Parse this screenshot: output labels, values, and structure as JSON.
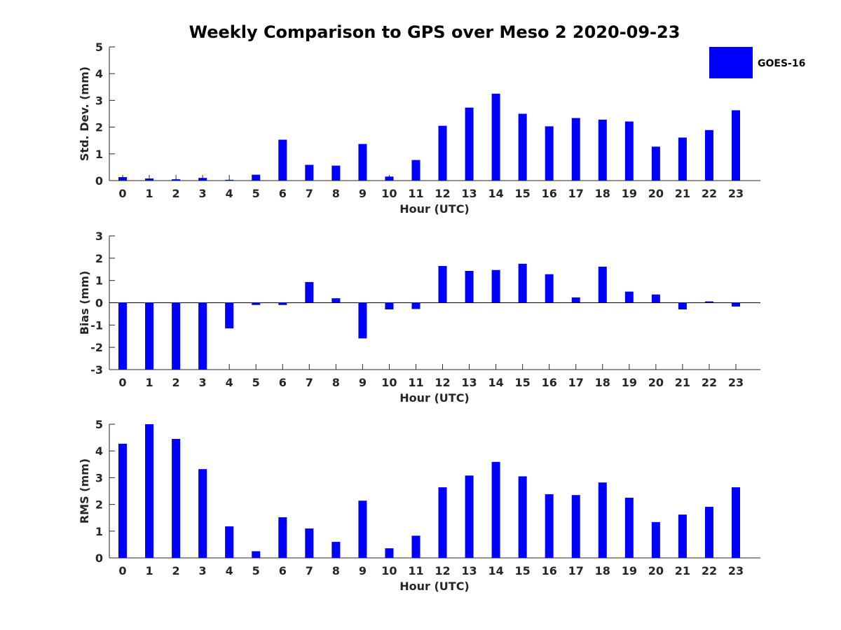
{
  "title": "Weekly Comparison to GPS over Meso 2 2020-09-23",
  "legend": {
    "label": "GOES-16",
    "color": "#0000ff",
    "placement": "top-right"
  },
  "chart_data": [
    {
      "type": "bar",
      "name": "std-dev",
      "xlabel": "Hour (UTC)",
      "ylabel": "Std. Dev. (mm)",
      "ylim": [
        0,
        5
      ],
      "yticks": [
        "0",
        "1",
        "2",
        "3",
        "4",
        "5"
      ],
      "categories": [
        "0",
        "1",
        "2",
        "3",
        "4",
        "5",
        "6",
        "7",
        "8",
        "9",
        "10",
        "11",
        "12",
        "13",
        "14",
        "15",
        "16",
        "17",
        "18",
        "19",
        "20",
        "21",
        "22",
        "23"
      ],
      "series": [
        {
          "name": "GOES-16",
          "color": "#0000ff",
          "values": [
            0.13,
            0.08,
            0.05,
            0.1,
            0.03,
            0.22,
            1.53,
            0.59,
            0.56,
            1.37,
            0.15,
            0.77,
            2.05,
            2.73,
            3.25,
            2.5,
            2.03,
            2.34,
            2.28,
            2.21,
            1.27,
            1.61,
            1.89,
            2.63
          ]
        }
      ]
    },
    {
      "type": "bar",
      "name": "bias",
      "xlabel": "Hour (UTC)",
      "ylabel": "Bias (mm)",
      "ylim": [
        -3,
        3
      ],
      "yticks": [
        "-3",
        "-2",
        "-1",
        "0",
        "1",
        "2",
        "3"
      ],
      "categories": [
        "0",
        "1",
        "2",
        "3",
        "4",
        "5",
        "6",
        "7",
        "8",
        "9",
        "10",
        "11",
        "12",
        "13",
        "14",
        "15",
        "16",
        "17",
        "18",
        "19",
        "20",
        "21",
        "22",
        "23"
      ],
      "series": [
        {
          "name": "GOES-16",
          "color": "#0000ff",
          "values": [
            -3.0,
            -3.0,
            -3.0,
            -3.0,
            -1.15,
            -0.1,
            -0.1,
            0.93,
            0.2,
            -1.6,
            -0.3,
            -0.28,
            1.65,
            1.43,
            1.47,
            1.75,
            1.28,
            0.24,
            1.62,
            0.5,
            0.37,
            -0.3,
            0.06,
            -0.17
          ]
        }
      ]
    },
    {
      "type": "bar",
      "name": "rms",
      "xlabel": "Hour (UTC)",
      "ylabel": "RMS (mm)",
      "ylim": [
        0,
        5
      ],
      "yticks": [
        "0",
        "1",
        "2",
        "3",
        "4",
        "5"
      ],
      "categories": [
        "0",
        "1",
        "2",
        "3",
        "4",
        "5",
        "6",
        "7",
        "8",
        "9",
        "10",
        "11",
        "12",
        "13",
        "14",
        "15",
        "16",
        "17",
        "18",
        "19",
        "20",
        "21",
        "22",
        "23"
      ],
      "series": [
        {
          "name": "GOES-16",
          "color": "#0000ff",
          "values": [
            4.27,
            5.0,
            4.45,
            3.32,
            1.18,
            0.25,
            1.52,
            1.1,
            0.6,
            2.14,
            0.36,
            0.83,
            2.64,
            3.08,
            3.59,
            3.05,
            2.38,
            2.35,
            2.82,
            2.25,
            1.34,
            1.62,
            1.91,
            2.64
          ]
        }
      ]
    }
  ]
}
